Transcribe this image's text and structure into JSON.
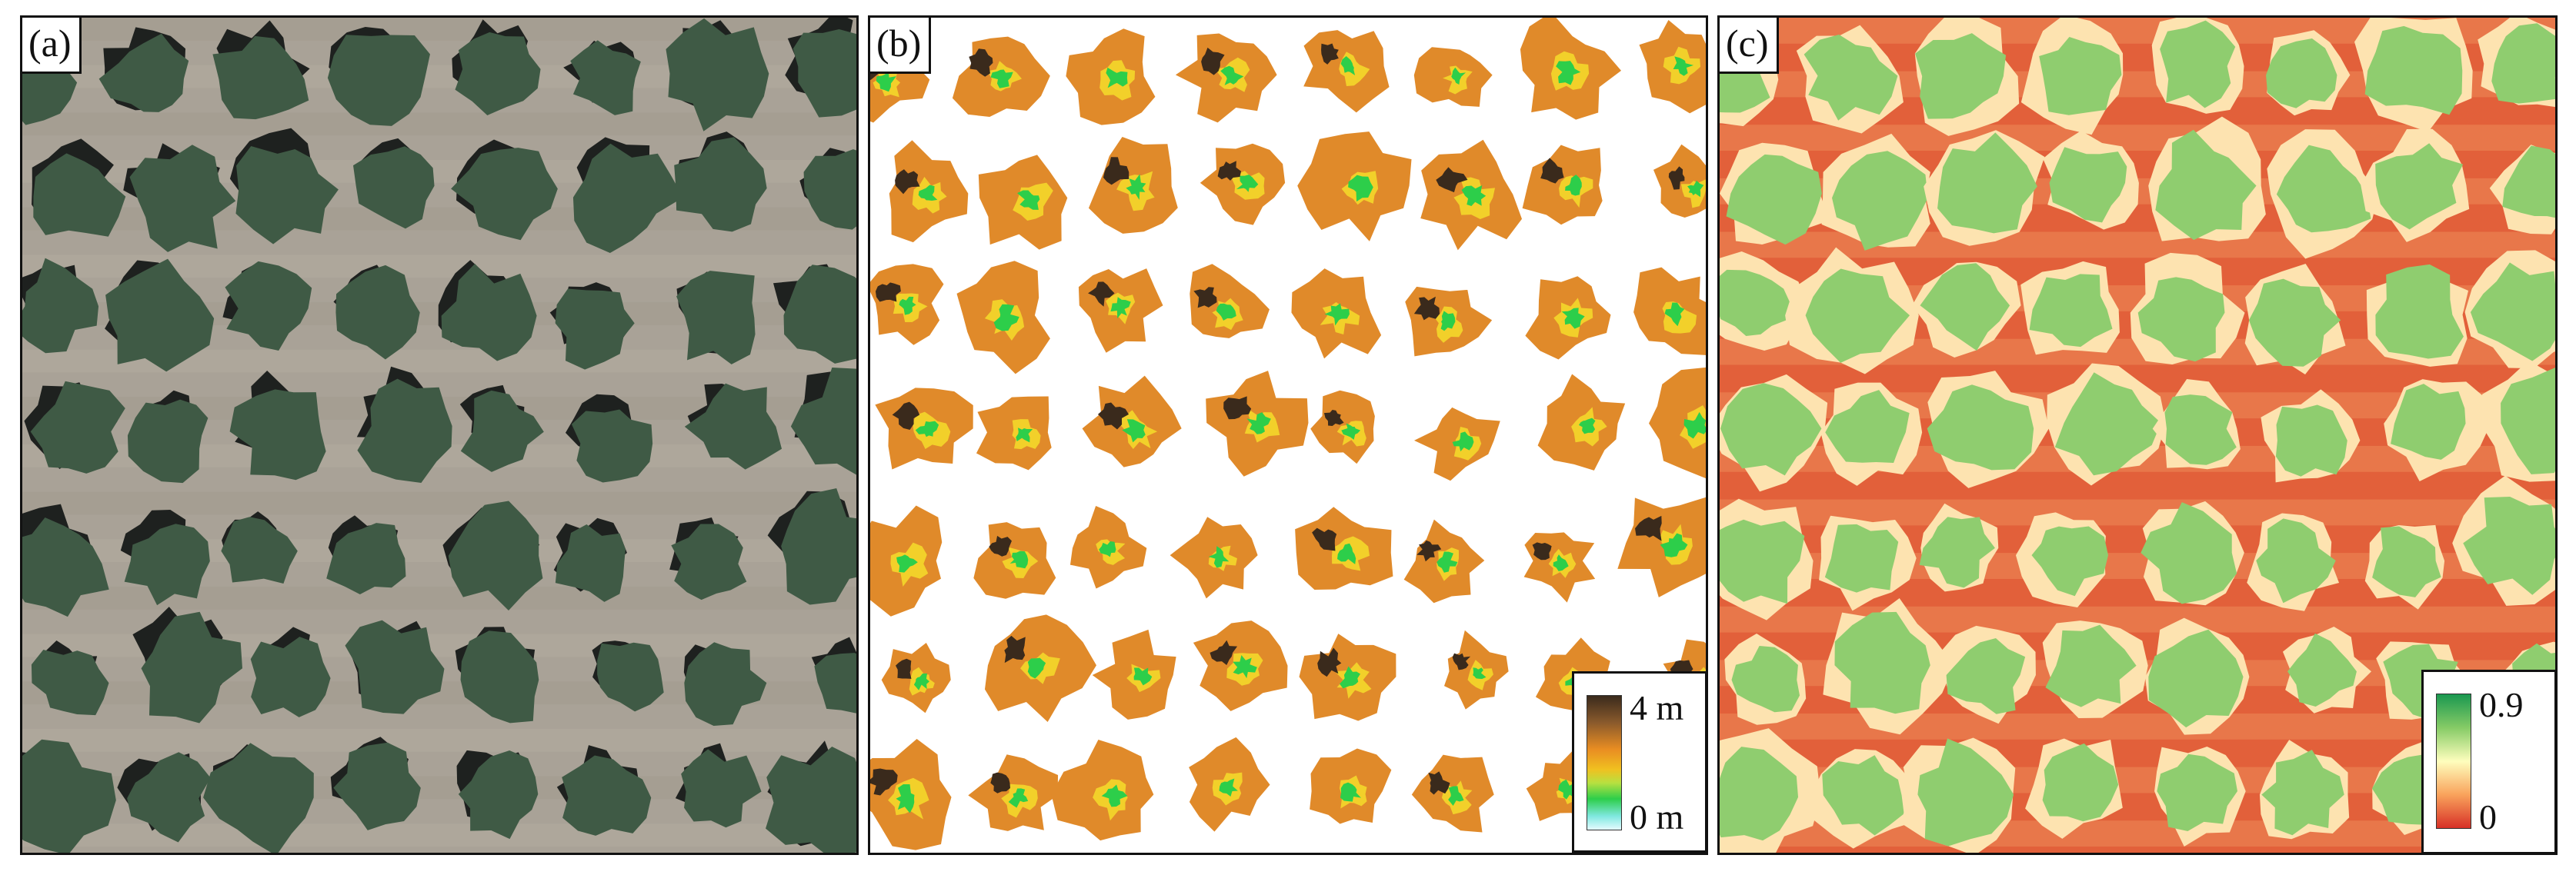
{
  "panels": {
    "a": {
      "label": "(a)"
    },
    "b": {
      "label": "(b)",
      "legend": {
        "max_label": "4 m",
        "min_label": "0 m"
      }
    },
    "c": {
      "label": "(c)",
      "legend": {
        "max_label": "0.9",
        "min_label": "0"
      }
    }
  },
  "colors": {
    "soil": "#a9a297",
    "tree_canopy": "#3f5a45",
    "tree_shadow": "#1e211f",
    "height_base": "#e08a2a",
    "height_low": "#2dce4a",
    "height_high": "#3a2a1c",
    "index_high": "#8fcd6f",
    "index_low": "#e2603a"
  }
}
